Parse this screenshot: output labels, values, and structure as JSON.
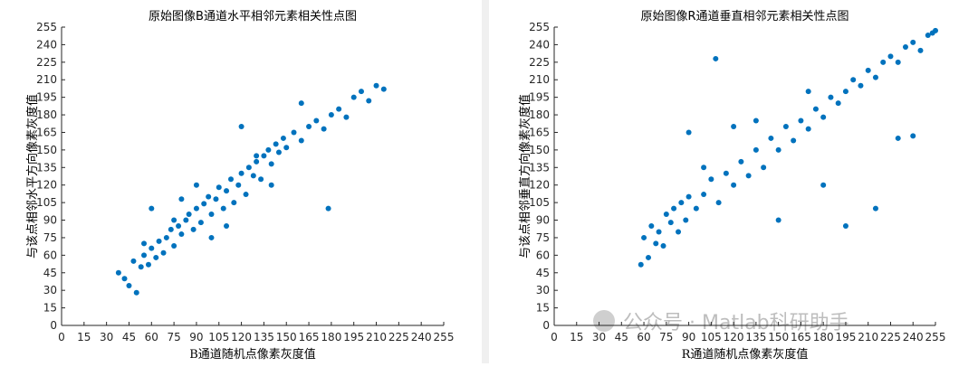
{
  "chart_data": [
    {
      "type": "scatter",
      "title": "原始图像B通道水平相邻元素相关性点图",
      "x_label": "B通道随机点像素灰度值",
      "y_label": "与该点相邻水平方向像素灰度值",
      "color": "#0072bd",
      "xlim": [
        0,
        255
      ],
      "ylim": [
        0,
        255
      ],
      "xticks": [
        0,
        15,
        30,
        45,
        60,
        75,
        90,
        105,
        120,
        135,
        150,
        165,
        180,
        195,
        210,
        225,
        240,
        255
      ],
      "yticks": [
        0,
        15,
        30,
        45,
        60,
        75,
        90,
        105,
        120,
        135,
        150,
        165,
        180,
        195,
        210,
        225,
        240,
        255
      ],
      "x": [
        38,
        42,
        45,
        48,
        50,
        53,
        55,
        58,
        60,
        63,
        65,
        68,
        70,
        73,
        75,
        78,
        80,
        83,
        85,
        88,
        90,
        93,
        95,
        98,
        100,
        103,
        105,
        108,
        110,
        113,
        115,
        118,
        120,
        123,
        125,
        128,
        130,
        133,
        135,
        138,
        140,
        143,
        145,
        148,
        150,
        155,
        160,
        165,
        170,
        175,
        180,
        185,
        190,
        195,
        200,
        205,
        210,
        215,
        60,
        80,
        100,
        120,
        140,
        160,
        178,
        90,
        110,
        130,
        55,
        75
      ],
      "values": [
        45,
        40,
        34,
        55,
        28,
        50,
        60,
        52,
        66,
        58,
        72,
        62,
        75,
        82,
        68,
        85,
        78,
        90,
        95,
        82,
        100,
        88,
        104,
        110,
        95,
        108,
        118,
        100,
        115,
        125,
        105,
        120,
        130,
        112,
        135,
        128,
        140,
        125,
        145,
        150,
        138,
        155,
        148,
        160,
        152,
        165,
        158,
        170,
        175,
        168,
        180,
        185,
        178,
        195,
        200,
        192,
        205,
        202,
        100,
        108,
        75,
        170,
        120,
        190,
        100,
        120,
        85,
        145,
        70,
        90
      ]
    },
    {
      "type": "scatter",
      "title": "原始图像R通道垂直相邻元素相关性点图",
      "x_label": "R通道随机点像素灰度值",
      "y_label": "与该点相邻垂直方向像素灰度值",
      "color": "#0072bd",
      "xlim": [
        0,
        255
      ],
      "ylim": [
        0,
        255
      ],
      "xticks": [
        0,
        15,
        30,
        45,
        60,
        75,
        90,
        105,
        120,
        135,
        150,
        165,
        180,
        195,
        210,
        225,
        240,
        255
      ],
      "yticks": [
        0,
        15,
        30,
        45,
        60,
        75,
        90,
        105,
        120,
        135,
        150,
        165,
        180,
        195,
        210,
        225,
        240,
        255
      ],
      "x": [
        58,
        60,
        63,
        65,
        68,
        70,
        73,
        75,
        78,
        80,
        83,
        85,
        88,
        90,
        95,
        100,
        105,
        110,
        115,
        120,
        125,
        130,
        135,
        140,
        145,
        150,
        155,
        160,
        165,
        170,
        175,
        180,
        185,
        190,
        195,
        200,
        205,
        210,
        215,
        220,
        225,
        230,
        235,
        240,
        245,
        250,
        253,
        255,
        108,
        230,
        195,
        90,
        150,
        120,
        180,
        240,
        100,
        215,
        135,
        170
      ],
      "values": [
        52,
        75,
        58,
        85,
        70,
        80,
        68,
        95,
        88,
        100,
        80,
        105,
        90,
        110,
        100,
        112,
        125,
        105,
        130,
        120,
        140,
        128,
        150,
        135,
        160,
        150,
        170,
        158,
        175,
        168,
        185,
        178,
        195,
        190,
        200,
        210,
        205,
        218,
        212,
        225,
        230,
        225,
        238,
        242,
        235,
        248,
        250,
        252,
        228,
        160,
        85,
        165,
        90,
        170,
        120,
        162,
        135,
        100,
        175,
        200
      ]
    }
  ],
  "watermark": "公众号 · Matlab科研助手"
}
